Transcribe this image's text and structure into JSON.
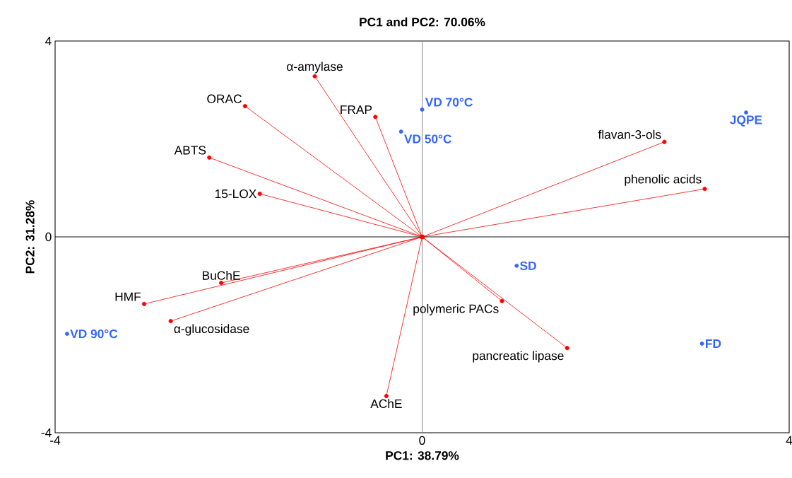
{
  "chart_data": {
    "type": "scatter",
    "title": "PC1 and PC2: 70.06%",
    "xlabel": "PC1: 38.79%",
    "ylabel": "PC2: 31.28%",
    "xlim": [
      -4,
      4
    ],
    "ylim": [
      -4,
      4
    ],
    "xticks": [
      -4,
      0,
      4
    ],
    "yticks": [
      -4,
      0,
      4
    ],
    "marker": "circle",
    "line_style": "solid",
    "ref_lines": [
      {
        "axis": "y",
        "value": 0,
        "color": "#000000"
      },
      {
        "axis": "x",
        "value": 0,
        "color": "#808080"
      }
    ],
    "series": [
      {
        "type": "line",
        "color": "#ff0000",
        "x": [
          0,
          -1.17
        ],
        "values": [
          0,
          3.28
        ]
      },
      {
        "type": "line",
        "color": "#ff0000",
        "x": [
          0,
          -1.93
        ],
        "values": [
          0,
          2.67
        ]
      },
      {
        "type": "line",
        "color": "#ff0000",
        "x": [
          0,
          -0.51
        ],
        "values": [
          0,
          2.45
        ]
      },
      {
        "type": "line",
        "color": "#ff0000",
        "x": [
          0,
          -2.32
        ],
        "values": [
          0,
          1.62
        ]
      },
      {
        "type": "line",
        "color": "#ff0000",
        "x": [
          0,
          -1.77
        ],
        "values": [
          0,
          0.88
        ]
      },
      {
        "type": "line",
        "color": "#ff0000",
        "x": [
          0,
          2.64
        ],
        "values": [
          0,
          1.94
        ]
      },
      {
        "type": "line",
        "color": "#ff0000",
        "x": [
          0,
          3.08
        ],
        "values": [
          0,
          0.98
        ]
      },
      {
        "type": "line",
        "color": "#ff0000",
        "x": [
          0,
          -2.19
        ],
        "values": [
          0,
          -0.94
        ]
      },
      {
        "type": "line",
        "color": "#ff0000",
        "x": [
          0,
          -3.03
        ],
        "values": [
          0,
          -1.37
        ]
      },
      {
        "type": "line",
        "color": "#ff0000",
        "x": [
          0,
          -2.74
        ],
        "values": [
          0,
          -1.72
        ]
      },
      {
        "type": "line",
        "color": "#ff0000",
        "x": [
          0,
          0.87
        ],
        "values": [
          0,
          -1.31
        ]
      },
      {
        "type": "line",
        "color": "#ff0000",
        "x": [
          0,
          1.58
        ],
        "values": [
          0,
          -2.27
        ]
      },
      {
        "type": "line",
        "color": "#ff0000",
        "x": [
          0,
          -0.39
        ],
        "values": [
          0,
          -3.25
        ]
      },
      {
        "color": "#3366ff",
        "x": [
          0.0,
          -0.23,
          3.53,
          1.03,
          3.05,
          -3.87
        ],
        "values": [
          2.6,
          2.15,
          2.54,
          -0.59,
          -2.18,
          -1.98
        ]
      }
    ],
    "annotations": [
      {
        "text": "VD 70°C",
        "x": 0.0,
        "y": 2.6
      },
      {
        "text": "VD 50°C",
        "x": -0.23,
        "y": 2.15
      },
      {
        "text": "JQPE",
        "x": 3.53,
        "y": 2.54
      },
      {
        "text": "SD",
        "x": 1.03,
        "y": -0.59
      },
      {
        "text": "FD",
        "x": 3.05,
        "y": -2.18
      },
      {
        "text": "VD 90°C",
        "x": -3.87,
        "y": -1.98
      },
      {
        "text": "α-amylase",
        "x": -1.17,
        "y": 3.28
      },
      {
        "text": "ORAC",
        "x": -1.93,
        "y": 2.67
      },
      {
        "text": "FRAP",
        "x": -0.51,
        "y": 2.45
      },
      {
        "text": "ABTS",
        "x": -2.32,
        "y": 1.62
      },
      {
        "text": "15-LOX",
        "x": -1.77,
        "y": 0.88
      },
      {
        "text": "flavan-3-ols",
        "x": 2.64,
        "y": 1.94
      },
      {
        "text": "phenolic acids",
        "x": 3.08,
        "y": 0.98
      },
      {
        "text": "BuChE",
        "x": -2.19,
        "y": -0.94
      },
      {
        "text": "HMF",
        "x": -3.03,
        "y": -1.37
      },
      {
        "text": "α-glucosidase",
        "x": -2.74,
        "y": -1.72
      },
      {
        "text": "polymeric PACs",
        "x": 0.87,
        "y": -1.31
      },
      {
        "text": "pancreatic lipase",
        "x": 1.58,
        "y": -2.27
      },
      {
        "text": "AChE",
        "x": -0.39,
        "y": -3.25
      }
    ]
  }
}
